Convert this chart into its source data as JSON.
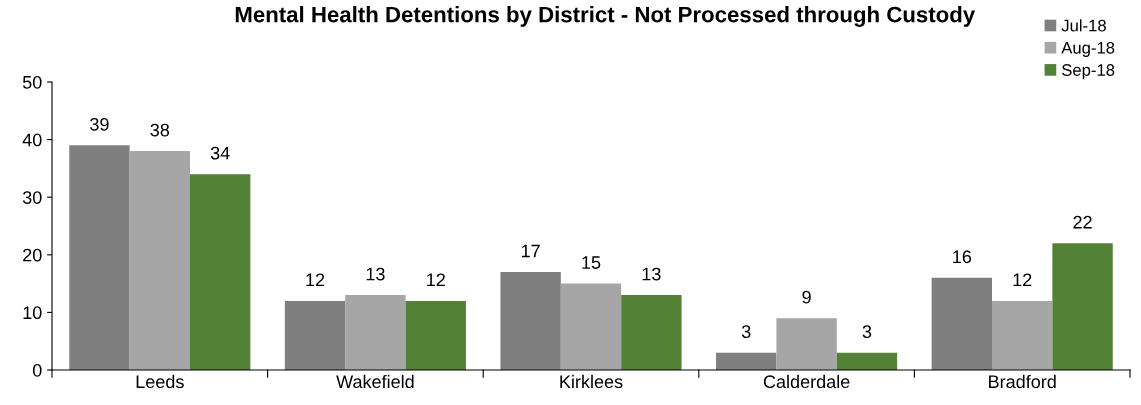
{
  "chart_data": {
    "type": "bar",
    "title": "Mental Health Detentions by District - Not Processed through Custody",
    "categories": [
      "Leeds",
      "Wakefield",
      "Kirklees",
      "Calderdale",
      "Bradford"
    ],
    "series": [
      {
        "name": "Jul-18",
        "color": "#7f7f7f",
        "values": [
          39,
          12,
          17,
          3,
          16
        ]
      },
      {
        "name": "Aug-18",
        "color": "#a6a6a6",
        "values": [
          38,
          13,
          15,
          9,
          12
        ]
      },
      {
        "name": "Sep-18",
        "color": "#538135",
        "values": [
          34,
          12,
          13,
          3,
          22
        ]
      }
    ],
    "ylim": [
      0,
      50
    ],
    "yticks": [
      0,
      10,
      20,
      30,
      40,
      50
    ],
    "grid": false,
    "legend": "top right",
    "data_labels": true
  }
}
